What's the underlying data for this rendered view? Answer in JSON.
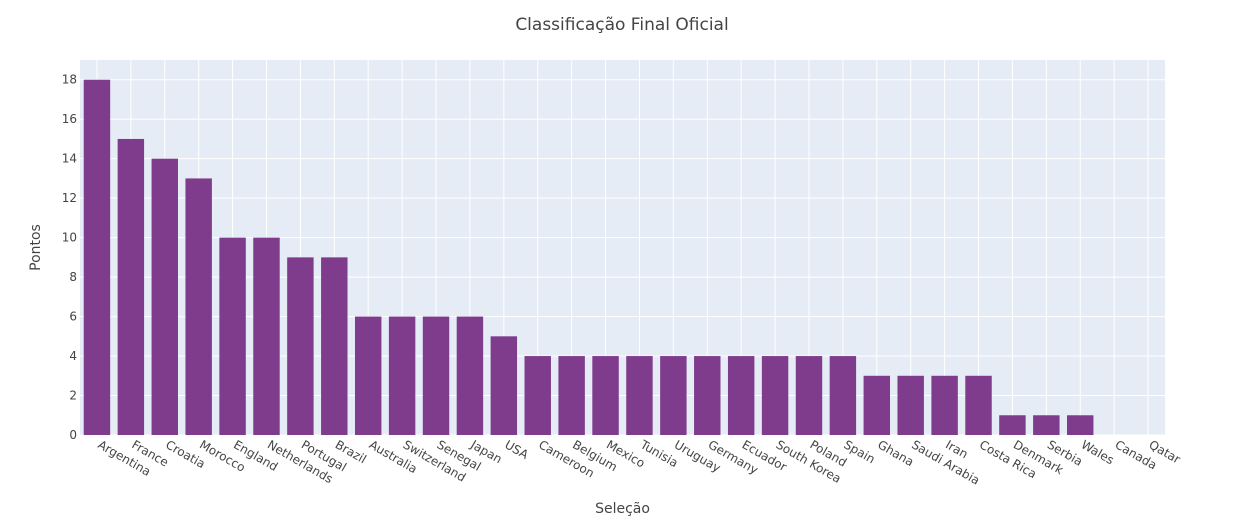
{
  "chart_data": {
    "type": "bar",
    "title": "Classificação Final Oficial",
    "xlabel": "Seleção",
    "ylabel": "Pontos",
    "categories": [
      "Argentina",
      "France",
      "Croatia",
      "Morocco",
      "England",
      "Netherlands",
      "Portugal",
      "Brazil",
      "Australia",
      "Switzerland",
      "Senegal",
      "Japan",
      "USA",
      "Cameroon",
      "Belgium",
      "Mexico",
      "Tunisia",
      "Uruguay",
      "Germany",
      "Ecuador",
      "South Korea",
      "Poland",
      "Spain",
      "Ghana",
      "Saudi Arabia",
      "Iran",
      "Costa Rica",
      "Denmark",
      "Serbia",
      "Wales",
      "Canada",
      "Qatar"
    ],
    "values": [
      18,
      15,
      14,
      13,
      10,
      10,
      9,
      9,
      6,
      6,
      6,
      6,
      5,
      4,
      4,
      4,
      4,
      4,
      4,
      4,
      4,
      4,
      4,
      3,
      3,
      3,
      3,
      1,
      1,
      1,
      0,
      0
    ],
    "ylim": [
      0,
      19
    ],
    "yticks": [
      0,
      2,
      4,
      6,
      8,
      10,
      12,
      14,
      16,
      18
    ],
    "grid": true,
    "colors": {
      "bar": "#7f3c8d",
      "plot_bg": "#e5ecf6",
      "grid": "#ffffff"
    }
  }
}
